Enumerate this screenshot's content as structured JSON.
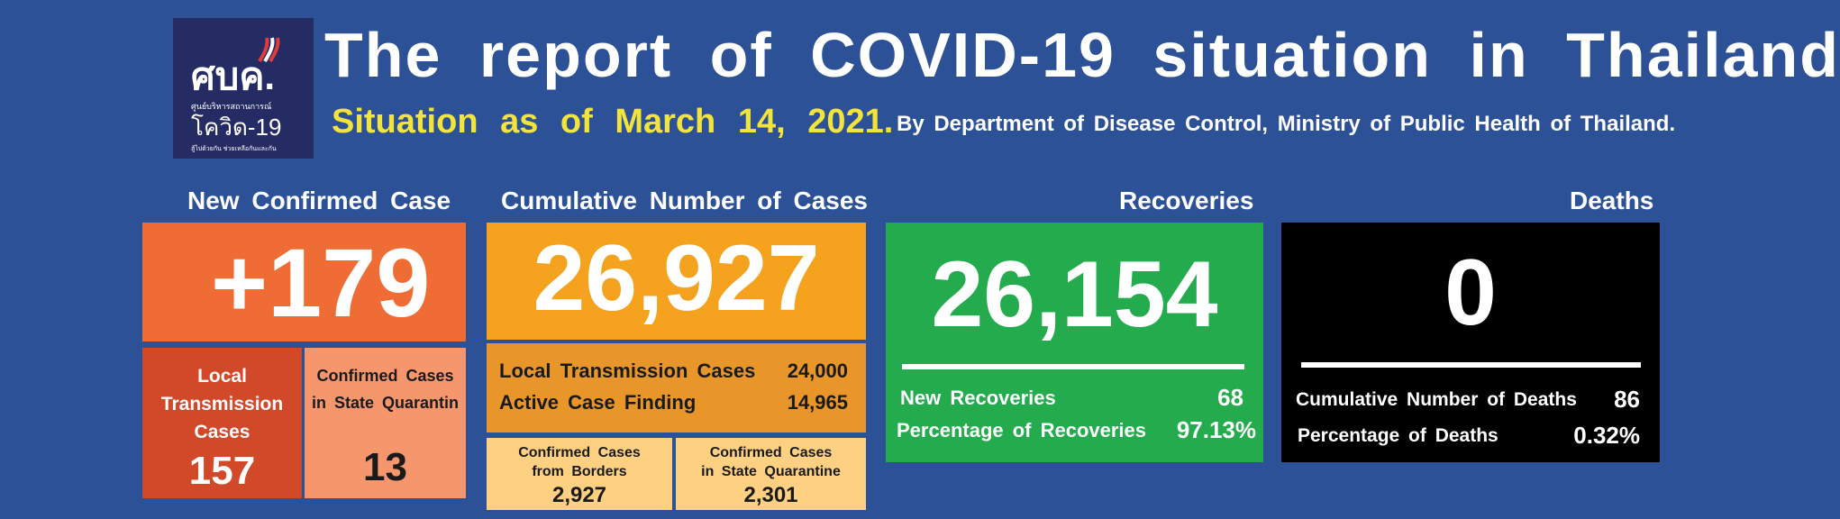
{
  "logo": {
    "main": "ศบค.",
    "sub": "ศูนย์บริหารสถานการณ์",
    "covid": "โควิด-19",
    "tagline": "สู้ไปด้วยกัน ช่วยเหลือกันและกัน"
  },
  "header": {
    "title": "The report of COVID-19 situation in Thailand",
    "situation": "Situation as of March 14, 2021.",
    "source": "By Department of Disease Control, Ministry of Public Health of Thailand."
  },
  "new_confirmed": {
    "heading": "New Confirmed Case",
    "value": "+179",
    "local": {
      "label1": "Local",
      "label2": "Transmission",
      "label3": "Cases",
      "value": "157"
    },
    "quarantine": {
      "label1": "Confirmed Cases",
      "label2": "in State Quarantin",
      "value": "13"
    }
  },
  "cumulative": {
    "heading": "Cumulative Number of Cases",
    "value": "26,927",
    "local_label": "Local Transmission Cases",
    "local_value": "24,000",
    "active_label": "Active Case Finding",
    "active_value": "14,965",
    "borders": {
      "label1": "Confirmed Cases",
      "label2": "from Borders",
      "value": "2,927"
    },
    "quarantine": {
      "label1": "Confirmed Cases",
      "label2": "in State Quarantine",
      "value": "2,301"
    }
  },
  "recoveries": {
    "heading": "Recoveries",
    "value": "26,154",
    "new_label": "New Recoveries",
    "new_value": "68",
    "pct_label": "Percentage of Recoveries",
    "pct_value": "97.13%"
  },
  "deaths": {
    "heading": "Deaths",
    "value": "0",
    "cum_label": "Cumulative Number of Deaths",
    "cum_value": "86",
    "pct_label": "Percentage of Deaths",
    "pct_value": "0.32%"
  },
  "colors": {
    "background": "#2c5196",
    "new_case": "#ef6c35",
    "local": "#d2492a",
    "state_q": "#f6966d",
    "cumulative": "#f5a21f",
    "cum_sub": "#e8962a",
    "cum_light": "#fdd082",
    "recoveries": "#24ab4d",
    "deaths": "#000000",
    "situation_text": "#f2e43a"
  }
}
